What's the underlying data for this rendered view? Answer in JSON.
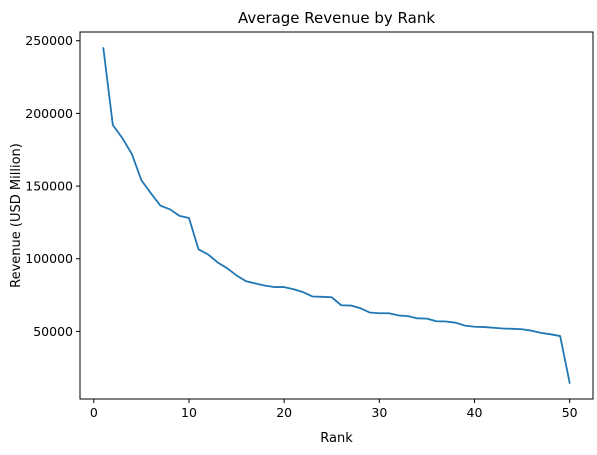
{
  "chart_data": {
    "type": "line",
    "title": "Average Revenue by Rank",
    "xlabel": "Rank",
    "ylabel": "Revenue (USD Million)",
    "xlim": [
      -1.45,
      52.45
    ],
    "ylim": [
      3500,
      256000
    ],
    "x_ticks": [
      0,
      10,
      20,
      30,
      40,
      50
    ],
    "y_ticks": [
      50000,
      100000,
      150000,
      200000,
      250000
    ],
    "grid": false,
    "legend": "none",
    "color": "#1f77b4",
    "series": [
      {
        "x": [
          1,
          2,
          3,
          4,
          5,
          6,
          7,
          8,
          9,
          10,
          11,
          12,
          13,
          14,
          15,
          16,
          17,
          18,
          19,
          20,
          21,
          22,
          23,
          24,
          25,
          26,
          27,
          28,
          29,
          30,
          31,
          32,
          33,
          34,
          35,
          36,
          37,
          38,
          39,
          40,
          41,
          42,
          43,
          44,
          45,
          46,
          47,
          48,
          49,
          50
        ],
        "values": [
          245000,
          192000,
          183000,
          172000,
          154000,
          145000,
          136500,
          134000,
          129500,
          128000,
          106500,
          103000,
          97500,
          93500,
          88500,
          84500,
          83000,
          81500,
          80500,
          80500,
          79000,
          77000,
          74000,
          73800,
          73500,
          68000,
          67800,
          66000,
          63000,
          62500,
          62500,
          61000,
          60500,
          59000,
          58800,
          57000,
          56800,
          56000,
          54000,
          53200,
          53000,
          52500,
          52000,
          51800,
          51500,
          50500,
          49000,
          48000,
          46800,
          14500
        ]
      }
    ]
  }
}
